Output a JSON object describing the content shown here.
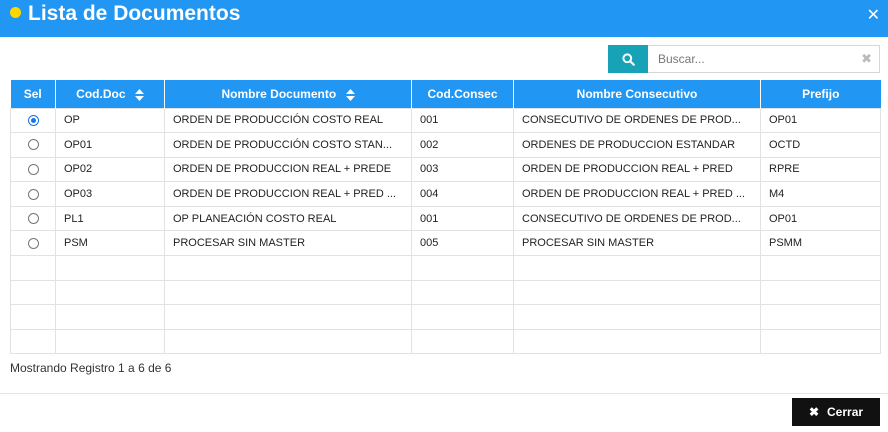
{
  "dialog": {
    "title": "Lista de Documentos"
  },
  "search": {
    "placeholder": "Buscar..."
  },
  "table": {
    "headers": {
      "sel": "Sel",
      "cod_doc": "Cod.Doc",
      "nombre_documento": "Nombre Documento",
      "cod_consec": "Cod.Consec",
      "nombre_consecutivo": "Nombre Consecutivo",
      "prefijo": "Prefijo"
    },
    "rows": [
      {
        "selected": true,
        "cod_doc": "OP",
        "nombre_documento": "ORDEN DE PRODUCCIÓN COSTO REAL",
        "cod_consec": "001",
        "nombre_consecutivo": "CONSECUTIVO DE ORDENES DE PROD...",
        "prefijo": "OP01"
      },
      {
        "selected": false,
        "cod_doc": "OP01",
        "nombre_documento": "ORDEN DE PRODUCCIÓN COSTO STAN...",
        "cod_consec": "002",
        "nombre_consecutivo": "ORDENES DE PRODUCCION ESTANDAR",
        "prefijo": "OCTD"
      },
      {
        "selected": false,
        "cod_doc": "OP02",
        "nombre_documento": "ORDEN DE PRODUCCION REAL + PREDE",
        "cod_consec": "003",
        "nombre_consecutivo": "ORDEN DE PRODUCCION REAL + PRED",
        "prefijo": "RPRE"
      },
      {
        "selected": false,
        "cod_doc": "OP03",
        "nombre_documento": "ORDEN DE PRODUCCION REAL + PRED ...",
        "cod_consec": "004",
        "nombre_consecutivo": "ORDEN DE PRODUCCION REAL + PRED ...",
        "prefijo": "M4"
      },
      {
        "selected": false,
        "cod_doc": "PL1",
        "nombre_documento": "OP PLANEACIÓN COSTO REAL",
        "cod_consec": "001",
        "nombre_consecutivo": "CONSECUTIVO DE ORDENES DE PROD...",
        "prefijo": "OP01"
      },
      {
        "selected": false,
        "cod_doc": "PSM",
        "nombre_documento": "PROCESAR SIN MASTER",
        "cod_consec": "005",
        "nombre_consecutivo": "PROCESAR SIN MASTER",
        "prefijo": "PSMM"
      }
    ],
    "empty_rows": 4
  },
  "footer": {
    "info": "Mostrando Registro 1 a 6 de 6",
    "close_label": "Cerrar"
  },
  "colors": {
    "primary": "#2196f3",
    "search_button": "#17a2b8",
    "title_dot": "#ffd600",
    "close_button": "#111111"
  },
  "icons": {
    "search": "search-icon",
    "close": "close-icon",
    "clear": "clear-icon",
    "sort": "sort-icon"
  }
}
